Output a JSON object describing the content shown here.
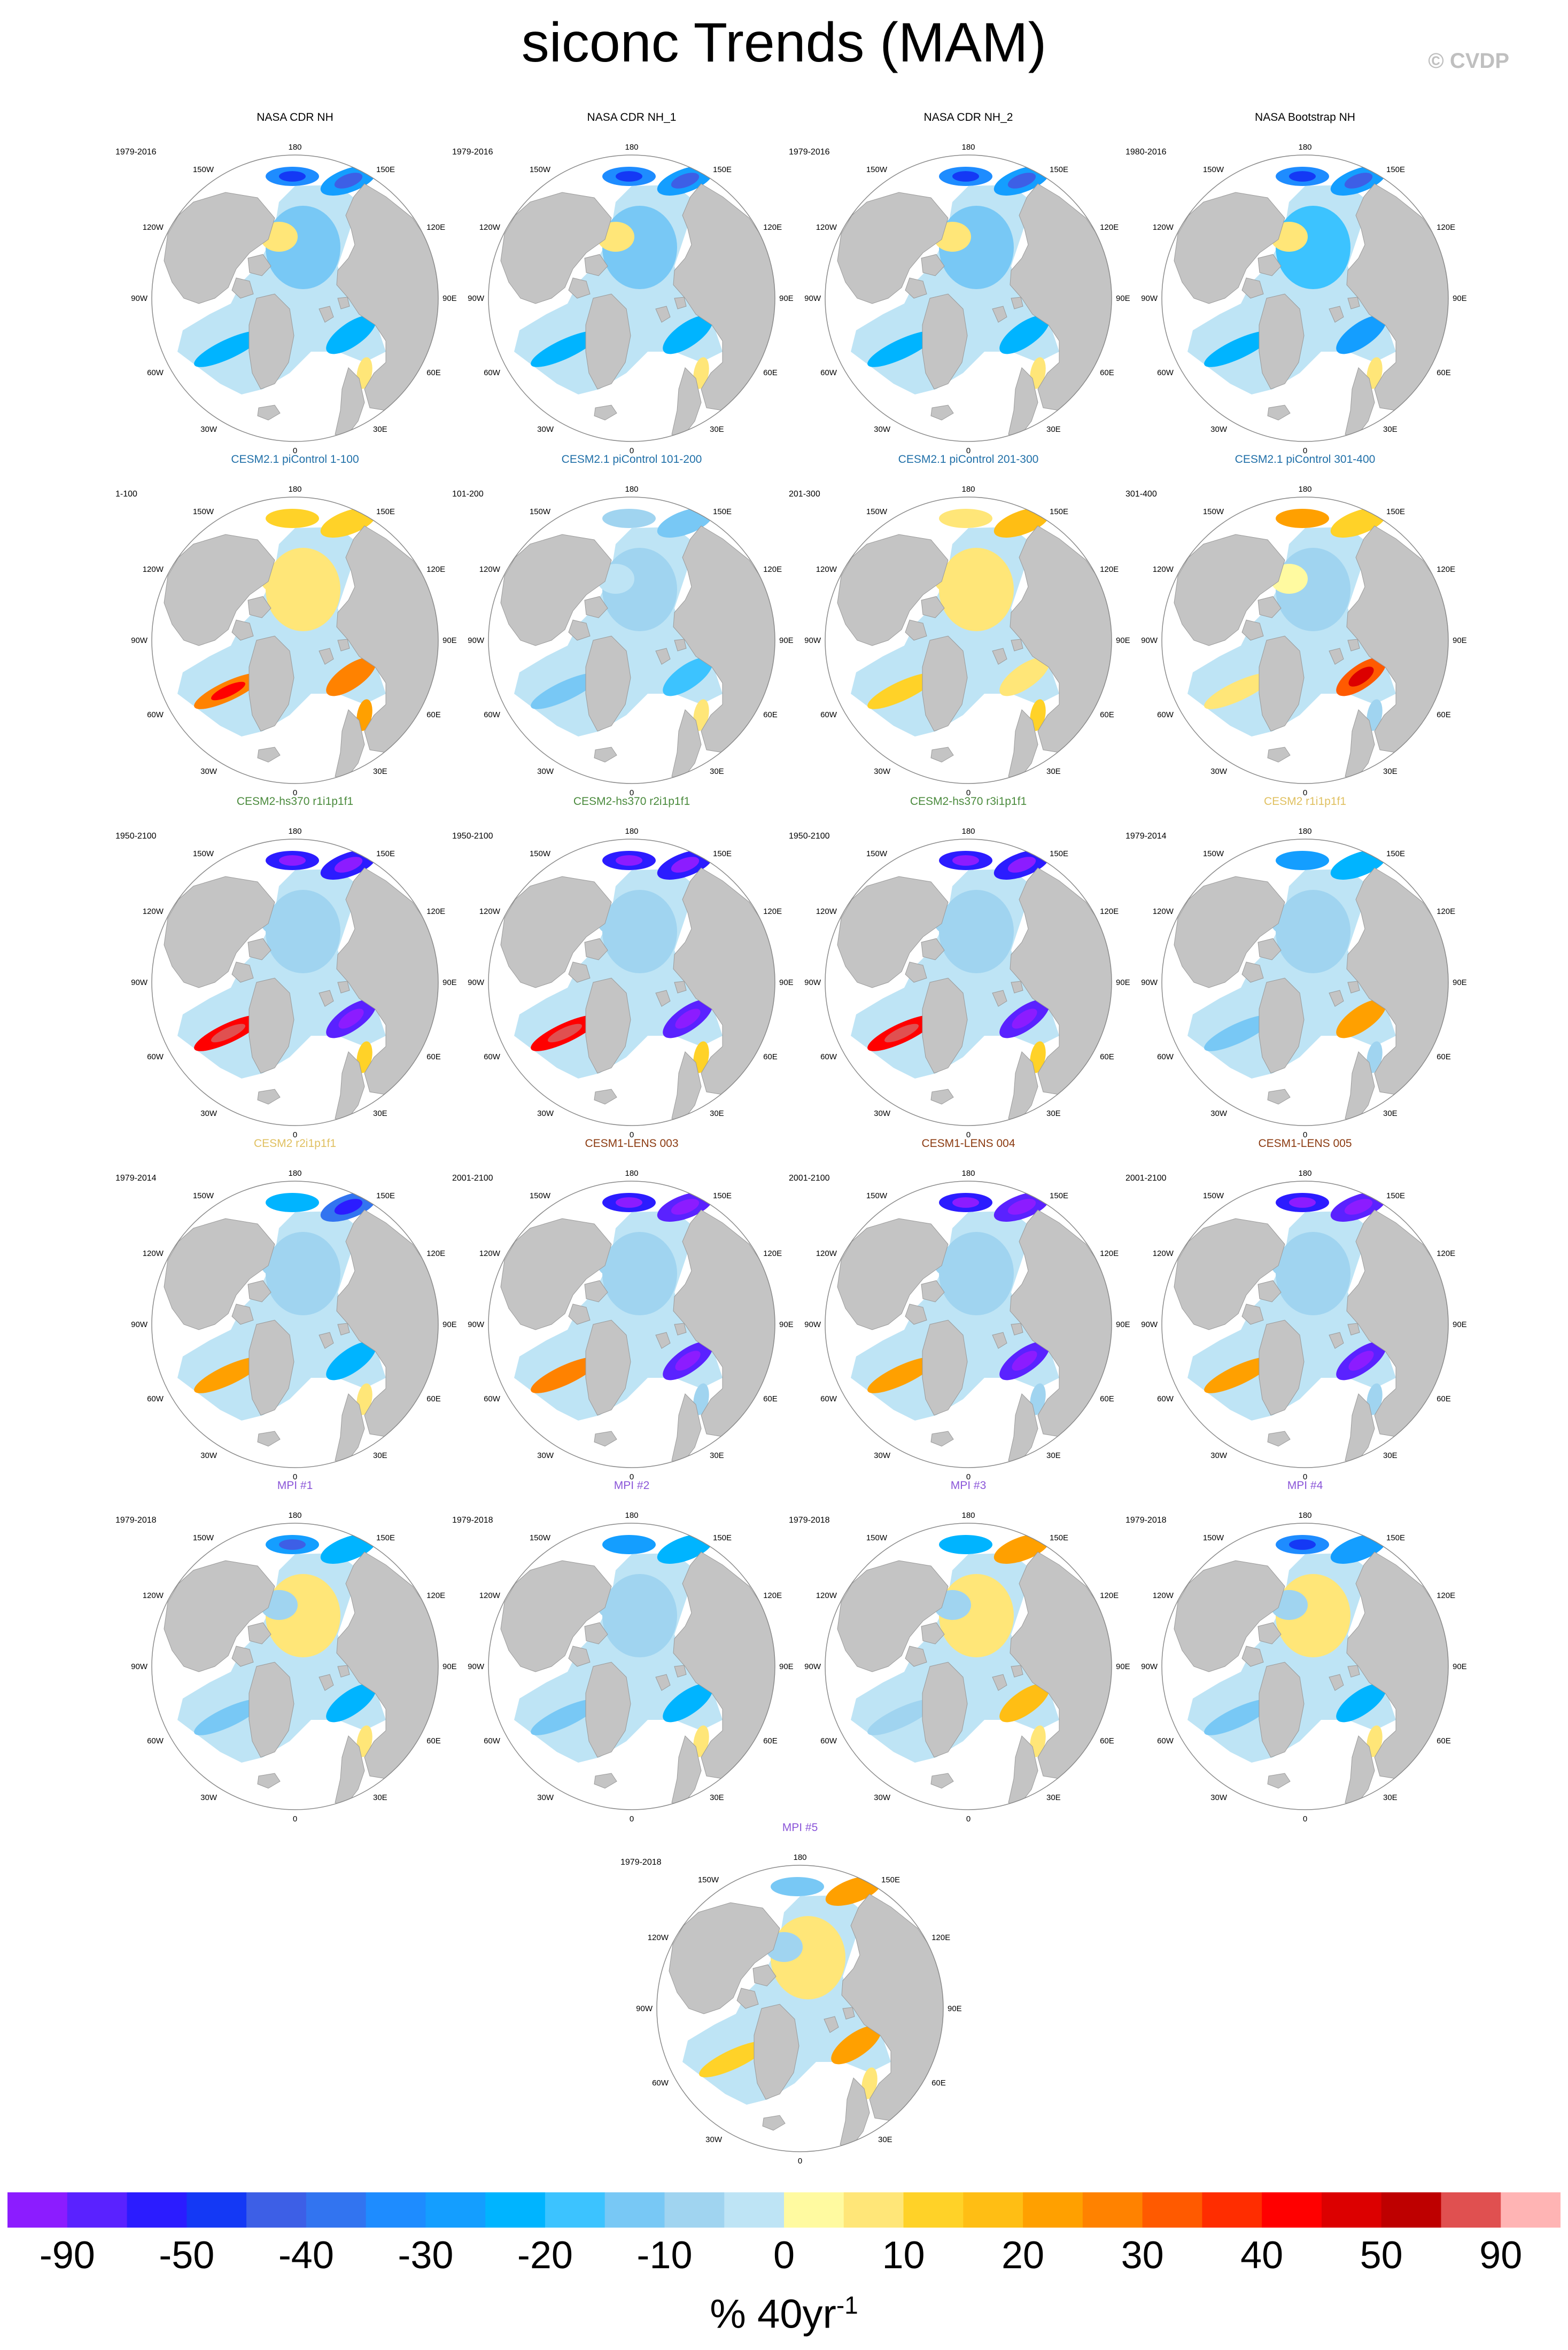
{
  "title": "siconc Trends (MAM)",
  "watermark": "© CVDP",
  "colors": {
    "land": "#c4c4c4",
    "ocean": "#ffffff",
    "cb": [
      "#8c1cff",
      "#5a22ff",
      "#2b1cff",
      "#1439f5",
      "#3d5fe6",
      "#3274f0",
      "#1e8cff",
      "#149eff",
      "#00b4ff",
      "#3cc3ff",
      "#78c8f5",
      "#a0d4f0",
      "#bee4f5",
      "#fffaa0",
      "#ffe678",
      "#ffd228",
      "#ffbe14",
      "#ffa000",
      "#ff8200",
      "#ff5a00",
      "#ff2d00",
      "#ff0000",
      "#dc0000",
      "#be0000",
      "#e05050",
      "#ffb4b4"
    ]
  },
  "axis_labels": {
    "top": "180",
    "upper_right": "150E",
    "right_upper": "120E",
    "right": "90E",
    "right_lower": "60E",
    "lower_right": "30E",
    "bottom": "0",
    "lower_left": "30W",
    "left_lower": "60W",
    "left": "90W",
    "left_upper": "120W",
    "upper_left": "150W"
  },
  "panels": [
    {
      "title": "NASA CDR NH",
      "title_color": "#000000",
      "period": "1979-2016",
      "trend": [
        -0.2,
        -0.42,
        -0.12,
        -0.3,
        0.08,
        -0.36,
        -0.5,
        0.12
      ]
    },
    {
      "title": "NASA CDR NH_1",
      "title_color": "#000000",
      "period": "1979-2016",
      "trend": [
        -0.2,
        -0.42,
        -0.12,
        -0.3,
        0.08,
        -0.36,
        -0.5,
        0.12
      ]
    },
    {
      "title": "NASA CDR NH_2",
      "title_color": "#000000",
      "period": "1979-2016",
      "trend": [
        -0.2,
        -0.42,
        -0.12,
        -0.3,
        0.08,
        -0.36,
        -0.5,
        0.12
      ]
    },
    {
      "title": "NASA Bootstrap NH",
      "title_color": "#000000",
      "period": "1980-2016",
      "trend": [
        -0.22,
        -0.44,
        -0.12,
        -0.3,
        0.06,
        -0.38,
        -0.52,
        0.1
      ]
    },
    {
      "title": "CESM2.1 piControl 1-100",
      "title_color": "#1f6fa8",
      "period": "1-100",
      "trend": [
        0.06,
        0.18,
        0.1,
        0.45,
        0.08,
        0.4,
        0.2,
        0.3
      ]
    },
    {
      "title": "CESM2.1 piControl 101-200",
      "title_color": "#1f6fa8",
      "period": "101-200",
      "trend": [
        -0.08,
        -0.2,
        -0.06,
        -0.18,
        -0.04,
        -0.26,
        -0.12,
        0.1
      ]
    },
    {
      "title": "CESM2.1 piControl 201-300",
      "title_color": "#1f6fa8",
      "period": "201-300",
      "trend": [
        0.08,
        0.28,
        -0.05,
        0.16,
        0.08,
        0.1,
        0.12,
        0.2
      ]
    },
    {
      "title": "CESM2.1 piControl 301-400",
      "title_color": "#1f6fa8",
      "period": "301-400",
      "trend": [
        -0.05,
        0.15,
        -0.05,
        0.1,
        0.04,
        0.5,
        0.3,
        -0.08
      ]
    },
    {
      "title": "CESM2-hs370 r1i1p1f1",
      "title_color": "#4a8a3c",
      "period": "1950-2100",
      "trend": [
        -0.05,
        -0.85,
        -0.7,
        0.65,
        -0.05,
        -0.9,
        -0.8,
        0.15
      ]
    },
    {
      "title": "CESM2-hs370 r2i1p1f1",
      "title_color": "#4a8a3c",
      "period": "1950-2100",
      "trend": [
        -0.05,
        -0.85,
        -0.7,
        0.65,
        -0.05,
        -0.9,
        -0.8,
        0.15
      ]
    },
    {
      "title": "CESM2-hs370 r3i1p1f1",
      "title_color": "#4a8a3c",
      "period": "1950-2100",
      "trend": [
        -0.05,
        -0.85,
        -0.7,
        0.65,
        -0.05,
        -0.9,
        -0.8,
        0.15
      ]
    },
    {
      "title": "CESM2 r1i1p1f1",
      "title_color": "#e0c060",
      "period": "1979-2014",
      "trend": [
        -0.05,
        -0.35,
        -0.1,
        -0.2,
        -0.06,
        0.3,
        -0.4,
        -0.05
      ]
    },
    {
      "title": "CESM2 r2i1p1f1",
      "title_color": "#e0c060",
      "period": "1979-2014",
      "trend": [
        -0.05,
        -0.55,
        -0.15,
        0.35,
        -0.05,
        -0.3,
        -0.35,
        0.1
      ]
    },
    {
      "title": "CESM1-LENS 003",
      "title_color": "#8b3a10",
      "period": "2001-2100",
      "trend": [
        -0.06,
        -0.9,
        -0.75,
        0.4,
        -0.08,
        -0.92,
        -0.85,
        -0.1
      ]
    },
    {
      "title": "CESM1-LENS 004",
      "title_color": "#8b3a10",
      "period": "2001-2100",
      "trend": [
        -0.06,
        -0.88,
        -0.75,
        0.35,
        -0.08,
        -0.92,
        -0.85,
        -0.1
      ]
    },
    {
      "title": "CESM1-LENS 005",
      "title_color": "#8b3a10",
      "period": "2001-2100",
      "trend": [
        -0.06,
        -0.88,
        -0.75,
        0.35,
        -0.08,
        -0.92,
        -0.85,
        -0.1
      ]
    },
    {
      "title": "MPI #1",
      "title_color": "#8a55d8",
      "period": "1979-2018",
      "trend": [
        0.06,
        -0.35,
        -0.12,
        -0.15,
        -0.05,
        -0.3,
        -0.45,
        0.1
      ]
    },
    {
      "title": "MPI #2",
      "title_color": "#8a55d8",
      "period": "1979-2018",
      "trend": [
        -0.06,
        -0.35,
        -0.12,
        -0.15,
        -0.05,
        -0.35,
        -0.4,
        0.1
      ]
    },
    {
      "title": "MPI #3",
      "title_color": "#8a55d8",
      "period": "1979-2018",
      "trend": [
        0.08,
        0.3,
        -0.1,
        -0.12,
        -0.05,
        0.25,
        -0.3,
        0.12
      ]
    },
    {
      "title": "MPI #4",
      "title_color": "#8a55d8",
      "period": "1979-2018",
      "trend": [
        0.06,
        -0.4,
        -0.12,
        -0.18,
        -0.05,
        -0.35,
        -0.5,
        0.1
      ]
    },
    {
      "title": "MPI #5",
      "title_color": "#8a55d8",
      "period": "1979-2018",
      "trend": [
        0.06,
        0.3,
        -0.1,
        0.15,
        -0.05,
        0.35,
        -0.15,
        0.12
      ]
    }
  ],
  "colorbar": {
    "labels": [
      "-90",
      "-50",
      "-40",
      "-30",
      "-20",
      "-10",
      "0",
      "10",
      "20",
      "30",
      "40",
      "50",
      "90"
    ],
    "units_prefix": "% 40yr",
    "units_sup": "-1"
  }
}
